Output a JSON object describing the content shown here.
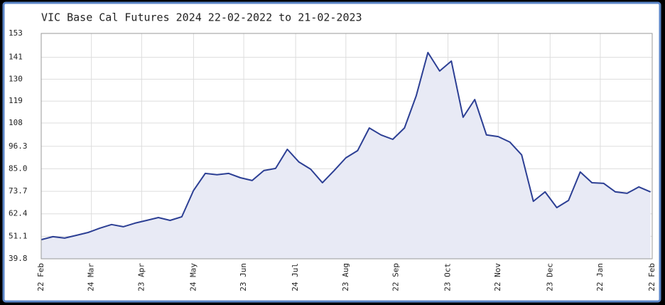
{
  "chart_data": {
    "type": "line",
    "title": "VIC Base Cal Futures 2024 22-02-2022 to 21-02-2023",
    "x": [
      "2022-02-22",
      "2022-03-01",
      "2022-03-08",
      "2022-03-15",
      "2022-03-22",
      "2022-03-29",
      "2022-04-05",
      "2022-04-12",
      "2022-04-19",
      "2022-04-26",
      "2022-05-03",
      "2022-05-10",
      "2022-05-17",
      "2022-05-24",
      "2022-05-31",
      "2022-06-07",
      "2022-06-14",
      "2022-06-21",
      "2022-06-28",
      "2022-07-05",
      "2022-07-12",
      "2022-07-19",
      "2022-07-26",
      "2022-08-02",
      "2022-08-09",
      "2022-08-16",
      "2022-08-23",
      "2022-08-30",
      "2022-09-06",
      "2022-09-13",
      "2022-09-20",
      "2022-09-27",
      "2022-10-04",
      "2022-10-11",
      "2022-10-18",
      "2022-10-25",
      "2022-11-01",
      "2022-11-08",
      "2022-11-15",
      "2022-11-22",
      "2022-11-29",
      "2022-12-06",
      "2022-12-13",
      "2022-12-20",
      "2022-12-27",
      "2023-01-03",
      "2023-01-10",
      "2023-01-17",
      "2023-01-24",
      "2023-01-31",
      "2023-02-07",
      "2023-02-14",
      "2023-02-21"
    ],
    "series": [
      {
        "name": "VIC Base Cal Futures 2024",
        "color": "#2c3f94",
        "values": [
          49.4,
          50.9,
          50.2,
          51.6,
          53,
          55.2,
          57,
          55.9,
          57.7,
          59.1,
          60.5,
          59.1,
          60.9,
          74.1,
          82.7,
          82,
          82.7,
          80.5,
          79.1,
          84.1,
          85.2,
          94.8,
          88.4,
          84.8,
          78,
          84.1,
          90.5,
          94.1,
          105.5,
          102,
          99.8,
          105.5,
          121.6,
          143.4,
          134.1,
          139.1,
          110.9,
          119.8,
          102,
          101.2,
          98.4,
          92,
          68.7,
          73.4,
          65.5,
          69.1,
          83.4,
          78,
          77.7,
          73.4,
          72.7,
          75.9,
          73.4
        ]
      }
    ],
    "xlim": [
      "2022-02-22",
      "2023-02-22"
    ],
    "xticks": [
      {
        "value": "2022-02-22",
        "label": "22 Feb"
      },
      {
        "value": "2022-03-24",
        "label": "24 Mar"
      },
      {
        "value": "2022-04-23",
        "label": "23 Apr"
      },
      {
        "value": "2022-05-24",
        "label": "24 May"
      },
      {
        "value": "2022-06-23",
        "label": "23 Jun"
      },
      {
        "value": "2022-07-24",
        "label": "24 Jul"
      },
      {
        "value": "2022-08-23",
        "label": "23 Aug"
      },
      {
        "value": "2022-09-22",
        "label": "22 Sep"
      },
      {
        "value": "2022-10-23",
        "label": "23 Oct"
      },
      {
        "value": "2022-11-22",
        "label": "22 Nov"
      },
      {
        "value": "2022-12-23",
        "label": "23 Dec"
      },
      {
        "value": "2023-01-22",
        "label": "22 Jan"
      },
      {
        "value": "2023-02-22",
        "label": "22 Feb"
      }
    ],
    "ylim": [
      39.8,
      153
    ],
    "yticks": [
      39.8,
      51.1,
      62.4,
      73.7,
      {
        "value": 85,
        "label": "85.0"
      },
      96.3,
      108,
      119,
      130,
      141,
      153
    ],
    "grid": true,
    "fill_color": "#e8eaf5"
  }
}
